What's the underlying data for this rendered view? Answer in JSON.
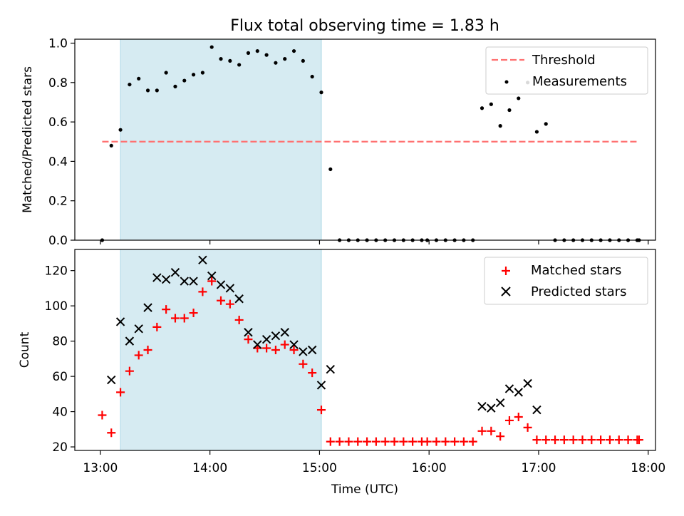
{
  "title": "Flux total observing time = 1.83 h",
  "chart_data": [
    {
      "type": "scatter",
      "name": "ratio-panel",
      "ylabel": "Matched/Predicted stars",
      "xlim": [
        "12:46",
        "18:04"
      ],
      "ylim": [
        0,
        1.02
      ],
      "yticks": [
        0.0,
        0.2,
        0.4,
        0.6,
        0.8,
        1.0
      ],
      "ytick_labels": [
        "0.0",
        "0.2",
        "0.4",
        "0.6",
        "0.8",
        "1.0"
      ],
      "xticks": [
        "13:00",
        "14:00",
        "15:00",
        "16:00",
        "17:00",
        "18:00"
      ],
      "shaded_span": [
        "13:11",
        "15:01"
      ],
      "shaded_color": "#add8e6",
      "threshold": {
        "name": "Threshold",
        "y": 0.5,
        "x_from": "13:01",
        "x_to": "17:55",
        "color": "#ff7070"
      },
      "legend": {
        "position": "top-right",
        "entries": [
          "Threshold",
          "Measurements"
        ]
      },
      "series": [
        {
          "name": "Measurements",
          "color": "#000000",
          "x": [
            "13:01",
            "13:06",
            "13:11",
            "13:16",
            "13:21",
            "13:26",
            "13:31",
            "13:36",
            "13:41",
            "13:46",
            "13:51",
            "13:56",
            "14:01",
            "14:06",
            "14:11",
            "14:16",
            "14:21",
            "14:26",
            "14:31",
            "14:36",
            "14:41",
            "14:46",
            "14:51",
            "14:56",
            "15:01",
            "15:06",
            "15:11",
            "15:16",
            "15:21",
            "15:26",
            "15:31",
            "15:36",
            "15:41",
            "15:46",
            "15:51",
            "15:56",
            "15:59",
            "16:04",
            "16:09",
            "16:14",
            "16:19",
            "16:24",
            "16:29",
            "16:34",
            "16:39",
            "16:44",
            "16:49",
            "16:54",
            "16:59",
            "17:04",
            "17:09",
            "17:14",
            "17:19",
            "17:24",
            "17:29",
            "17:34",
            "17:39",
            "17:44",
            "17:49",
            "17:54",
            "17:55"
          ],
          "y": [
            0.0,
            0.48,
            0.56,
            0.79,
            0.82,
            0.76,
            0.76,
            0.85,
            0.78,
            0.81,
            0.84,
            0.85,
            0.98,
            0.92,
            0.91,
            0.89,
            0.95,
            0.96,
            0.94,
            0.9,
            0.92,
            0.96,
            0.91,
            0.83,
            0.75,
            0.36,
            0.0,
            0.0,
            0.0,
            0.0,
            0.0,
            0.0,
            0.0,
            0.0,
            0.0,
            0.0,
            0.0,
            0.0,
            0.0,
            0.0,
            0.0,
            0.0,
            0.67,
            0.69,
            0.58,
            0.66,
            0.72,
            0.8,
            0.55,
            0.59,
            0.0,
            0.0,
            0.0,
            0.0,
            0.0,
            0.0,
            0.0,
            0.0,
            0.0,
            0.0,
            0.0
          ]
        }
      ]
    },
    {
      "type": "scatter",
      "name": "count-panel",
      "xlabel": "Time (UTC)",
      "ylabel": "Count",
      "xlim": [
        "12:46",
        "18:04"
      ],
      "ylim": [
        18,
        132
      ],
      "yticks": [
        20,
        40,
        60,
        80,
        100,
        120
      ],
      "xticks": [
        "13:00",
        "14:00",
        "15:00",
        "16:00",
        "17:00",
        "18:00"
      ],
      "shaded_span": [
        "13:11",
        "15:01"
      ],
      "shaded_color": "#add8e6",
      "legend": {
        "position": "top-right",
        "entries": [
          "Matched stars",
          "Predicted stars"
        ]
      },
      "series": [
        {
          "name": "Matched stars",
          "marker": "plus",
          "color": "#ff0000",
          "x": [
            "13:01",
            "13:06",
            "13:11",
            "13:16",
            "13:21",
            "13:26",
            "13:31",
            "13:36",
            "13:41",
            "13:46",
            "13:51",
            "13:56",
            "14:01",
            "14:06",
            "14:11",
            "14:16",
            "14:21",
            "14:26",
            "14:31",
            "14:36",
            "14:41",
            "14:46",
            "14:51",
            "14:56",
            "15:01",
            "15:06",
            "15:11",
            "15:16",
            "15:21",
            "15:26",
            "15:31",
            "15:36",
            "15:41",
            "15:46",
            "15:51",
            "15:56",
            "15:59",
            "16:04",
            "16:09",
            "16:14",
            "16:19",
            "16:24",
            "16:29",
            "16:34",
            "16:39",
            "16:44",
            "16:49",
            "16:54",
            "16:59",
            "17:04",
            "17:09",
            "17:14",
            "17:19",
            "17:24",
            "17:29",
            "17:34",
            "17:39",
            "17:44",
            "17:49",
            "17:54",
            "17:55"
          ],
          "y": [
            38,
            28,
            51,
            63,
            72,
            75,
            88,
            98,
            93,
            93,
            96,
            108,
            114,
            103,
            101,
            92,
            81,
            76,
            76,
            75,
            78,
            75,
            67,
            62,
            41,
            23,
            23,
            23,
            23,
            23,
            23,
            23,
            23,
            23,
            23,
            23,
            23,
            23,
            23,
            23,
            23,
            23,
            29,
            29,
            26,
            35,
            37,
            31,
            24,
            24,
            24,
            24,
            24,
            24,
            24,
            24,
            24,
            24,
            24,
            24,
            24
          ]
        },
        {
          "name": "Predicted stars",
          "marker": "x",
          "color": "#000000",
          "x": [
            "13:06",
            "13:11",
            "13:16",
            "13:21",
            "13:26",
            "13:31",
            "13:36",
            "13:41",
            "13:46",
            "13:51",
            "13:56",
            "14:01",
            "14:06",
            "14:11",
            "14:16",
            "14:21",
            "14:26",
            "14:31",
            "14:36",
            "14:41",
            "14:46",
            "14:51",
            "14:56",
            "15:01",
            "15:06",
            "16:29",
            "16:34",
            "16:39",
            "16:44",
            "16:49",
            "16:54",
            "16:59"
          ],
          "y": [
            58,
            91,
            80,
            87,
            99,
            116,
            115,
            119,
            114,
            114,
            126,
            117,
            112,
            110,
            104,
            85,
            78,
            81,
            83,
            85,
            78,
            74,
            75,
            55,
            64,
            43,
            42,
            45,
            53,
            51,
            56,
            41
          ]
        }
      ]
    }
  ]
}
